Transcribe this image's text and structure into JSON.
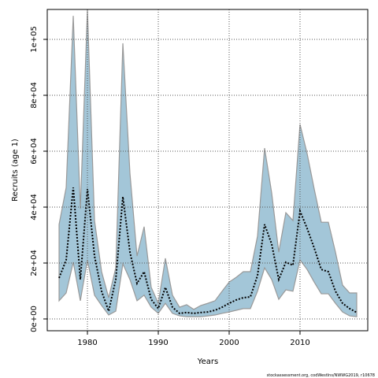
{
  "chart_data": {
    "type": "band-line",
    "x_label": "Years",
    "y_label": "Recruits (age 1)",
    "footnote": "stockassessment.org, codWestIns/NWWG2019, r10678",
    "x": [
      1976,
      1977,
      1978,
      1979,
      1980,
      1981,
      1982,
      1983,
      1984,
      1985,
      1986,
      1987,
      1988,
      1989,
      1990,
      1991,
      1992,
      1993,
      1994,
      1995,
      1996,
      1997,
      1998,
      1999,
      2000,
      2001,
      2002,
      2003,
      2004,
      2005,
      2006,
      2007,
      2008,
      2009,
      2010,
      2011,
      2012,
      2013,
      2014,
      2015,
      2016,
      2017,
      2018
    ],
    "values": [
      14650,
      21100,
      47000,
      14100,
      46500,
      22500,
      9900,
      2800,
      14100,
      43700,
      23900,
      12700,
      16900,
      7000,
      3700,
      11300,
      4200,
      2000,
      2300,
      2000,
      2300,
      2500,
      3100,
      4200,
      5600,
      6800,
      7600,
      7900,
      15500,
      33800,
      26800,
      14100,
      20300,
      19200,
      38600,
      32400,
      25400,
      17700,
      16900,
      9900,
      5600,
      3700,
      2300
    ],
    "upper": [
      33800,
      47000,
      108400,
      39400,
      110700,
      35200,
      16900,
      7600,
      18300,
      98600,
      52100,
      22500,
      33000,
      11300,
      5600,
      21700,
      8500,
      4200,
      5100,
      3400,
      4800,
      5600,
      6500,
      9900,
      13200,
      14900,
      16900,
      16900,
      29600,
      61100,
      45100,
      23900,
      38000,
      35200,
      69600,
      59200,
      46500,
      34600,
      34600,
      23900,
      12100,
      9300,
      9300
    ],
    "lower": [
      6500,
      9300,
      20300,
      6500,
      21100,
      8500,
      4800,
      1400,
      2800,
      19700,
      14100,
      6500,
      8500,
      4200,
      2000,
      5600,
      2000,
      1100,
      800,
      800,
      800,
      1100,
      1400,
      2000,
      2500,
      3100,
      3700,
      3700,
      9900,
      18300,
      14100,
      7000,
      10400,
      9900,
      21100,
      17700,
      13200,
      9000,
      9000,
      5600,
      2500,
      1100,
      800
    ],
    "line_color": "#000000",
    "band_color": "#a3c6d8",
    "band_edge_color": "#999999",
    "xlim": [
      1974.33,
      2019.56
    ],
    "ylim": [
      -4225,
      110700
    ],
    "xticks": [
      1980,
      1990,
      2000,
      2010
    ],
    "yticks": [
      {
        "value": 0,
        "label": "0e+00"
      },
      {
        "value": 20000,
        "label": "2e+04"
      },
      {
        "value": 40000,
        "label": "4e+04"
      },
      {
        "value": 60000,
        "label": "6e+04"
      },
      {
        "value": 80000,
        "label": "8e+04"
      },
      {
        "value": 100000,
        "label": "1e+05"
      }
    ],
    "grid": true
  }
}
